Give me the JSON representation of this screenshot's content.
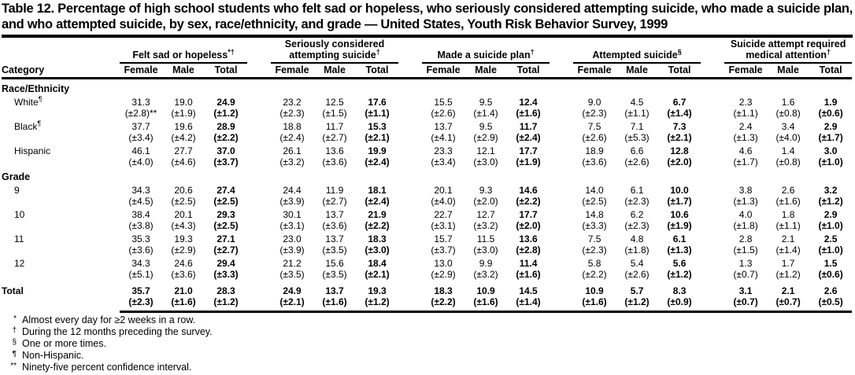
{
  "title": "Table 12. Percentage of high school students who felt sad or hopeless, who seriously considered attempting suicide, who made a suicide plan, and who attempted suicide, by sex, race/ethnicity, and grade — United States, Youth Risk Behavior Survey, 1999",
  "table": {
    "category_header": "Category",
    "subcols": [
      "Female",
      "Male",
      "Total"
    ],
    "groups": [
      {
        "label": "Felt sad or hopeless",
        "sup": "*†"
      },
      {
        "label": "Seriously considered attempting suicide",
        "sup": "†"
      },
      {
        "label": "Made a suicide plan",
        "sup": "†"
      },
      {
        "label": "Attempted suicide",
        "sup": "§"
      },
      {
        "label": "Suicide attempt required medical attention",
        "sup": "†"
      }
    ],
    "sections": [
      {
        "heading": "Race/Ethnicity",
        "rows": [
          {
            "label": "White",
            "sup": "¶",
            "values": [
              "31.3",
              "19.0",
              "24.9",
              "23.2",
              "12.5",
              "17.6",
              "15.5",
              "9.5",
              "12.4",
              "9.0",
              "4.5",
              "6.7",
              "2.3",
              "1.6",
              "1.9"
            ],
            "cis": [
              "(±2.8)**",
              "(±1.9)",
              "(±1.2)",
              "(±2.3)",
              "(±1.5)",
              "(±1.1)",
              "(±2.6)",
              "(±1.4)",
              "(±1.6)",
              "(±2.3)",
              "(±1.1)",
              "(±1.4)",
              "(±1.1)",
              "(±0.8)",
              "(±0.6)"
            ]
          },
          {
            "label": "Black",
            "sup": "¶",
            "values": [
              "37.7",
              "19.6",
              "28.9",
              "18.8",
              "11.7",
              "15.3",
              "13.7",
              "9.5",
              "11.7",
              "7.5",
              "7.1",
              "7.3",
              "2.4",
              "3.4",
              "2.9"
            ],
            "cis": [
              "(±3.4)",
              "(±4.2)",
              "(±2.2)",
              "(±2.4)",
              "(±2.7)",
              "(±2.1)",
              "(±4.1)",
              "(±2.9)",
              "(±2.4)",
              "(±2.6)",
              "(±5.3)",
              "(±2.1)",
              "(±1.3)",
              "(±4.0)",
              "(±1.7)"
            ]
          },
          {
            "label": "Hispanic",
            "sup": "",
            "values": [
              "46.1",
              "27.7",
              "37.0",
              "26.1",
              "13.6",
              "19.9",
              "23.3",
              "12.1",
              "17.7",
              "18.9",
              "6.6",
              "12.8",
              "4.6",
              "1.4",
              "3.0"
            ],
            "cis": [
              "(±4.0)",
              "(±4.6)",
              "(±3.7)",
              "(±3.2)",
              "(±3.6)",
              "(±2.4)",
              "(±3.4)",
              "(±3.0)",
              "(±1.9)",
              "(±3.6)",
              "(±2.6)",
              "(±2.0)",
              "(±1.7)",
              "(±0.8)",
              "(±1.0)"
            ]
          }
        ]
      },
      {
        "heading": "Grade",
        "rows": [
          {
            "label": "9",
            "sup": "",
            "values": [
              "34.3",
              "20.6",
              "27.4",
              "24.4",
              "11.9",
              "18.1",
              "20.1",
              "9.3",
              "14.6",
              "14.0",
              "6.1",
              "10.0",
              "3.8",
              "2.6",
              "3.2"
            ],
            "cis": [
              "(±4.5)",
              "(±2.5)",
              "(±2.5)",
              "(±3.9)",
              "(±2.7)",
              "(±2.4)",
              "(±4.0)",
              "(±2.0)",
              "(±2.2)",
              "(±2.5)",
              "(±2.3)",
              "(±1.7)",
              "(±1.3)",
              "(±1.6)",
              "(±1.2)"
            ]
          },
          {
            "label": "10",
            "sup": "",
            "values": [
              "38.4",
              "20.1",
              "29.3",
              "30.1",
              "13.7",
              "21.9",
              "22.7",
              "12.7",
              "17.7",
              "14.8",
              "6.2",
              "10.6",
              "4.0",
              "1.8",
              "2.9"
            ],
            "cis": [
              "(±3.8)",
              "(±4.3)",
              "(±2.5)",
              "(±3.1)",
              "(±3.6)",
              "(±2.2)",
              "(±3.1)",
              "(±3.2)",
              "(±2.0)",
              "(±3.3)",
              "(±2.3)",
              "(±1.9)",
              "(±1.8)",
              "(±1.1)",
              "(±1.0)"
            ]
          },
          {
            "label": "11",
            "sup": "",
            "values": [
              "35.3",
              "19.3",
              "27.1",
              "23.0",
              "13.7",
              "18.3",
              "15.7",
              "11.5",
              "13.6",
              "7.5",
              "4.8",
              "6.1",
              "2.8",
              "2.1",
              "2.5"
            ],
            "cis": [
              "(±3.6)",
              "(±2.9)",
              "(±2.7)",
              "(±3.9)",
              "(±3.5)",
              "(±3.0)",
              "(±3.7)",
              "(±3.0)",
              "(±2.8)",
              "(±2.3)",
              "(±1.8)",
              "(±1.3)",
              "(±1.5)",
              "(±1.4)",
              "(±1.0)"
            ]
          },
          {
            "label": "12",
            "sup": "",
            "values": [
              "34.3",
              "24.6",
              "29.4",
              "21.2",
              "15.6",
              "18.4",
              "13.0",
              "9.9",
              "11.4",
              "5.8",
              "5.4",
              "5.6",
              "1.3",
              "1.7",
              "1.5"
            ],
            "cis": [
              "(±5.1)",
              "(±3.6)",
              "(±3.3)",
              "(±3.5)",
              "(±3.5)",
              "(±2.1)",
              "(±2.9)",
              "(±3.2)",
              "(±1.6)",
              "(±2.2)",
              "(±2.6)",
              "(±1.2)",
              "(±0.7)",
              "(±1.2)",
              "(±0.6)"
            ]
          }
        ]
      },
      {
        "heading": null,
        "rows": [
          {
            "label": "Total",
            "sup": "",
            "total": true,
            "values": [
              "35.7",
              "21.0",
              "28.3",
              "24.9",
              "13.7",
              "19.3",
              "18.3",
              "10.9",
              "14.5",
              "10.9",
              "5.7",
              "8.3",
              "3.1",
              "2.1",
              "2.6"
            ],
            "cis": [
              "(±2.3)",
              "(±1.6)",
              "(±1.2)",
              "(±2.1)",
              "(±1.6)",
              "(±1.2)",
              "(±2.2)",
              "(±1.6)",
              "(±1.4)",
              "(±1.6)",
              "(±1.2)",
              "(±0.9)",
              "(±0.7)",
              "(±0.7)",
              "(±0.5)"
            ]
          }
        ]
      }
    ]
  },
  "footnotes": [
    {
      "marker": "*",
      "text": "Almost every day for ≥2 weeks in a row."
    },
    {
      "marker": "†",
      "text": "During the 12 months preceding the survey."
    },
    {
      "marker": "§",
      "text": "One or more times."
    },
    {
      "marker": "¶",
      "text": "Non-Hispanic."
    },
    {
      "marker": "**",
      "text": "Ninety-five percent confidence interval."
    }
  ]
}
